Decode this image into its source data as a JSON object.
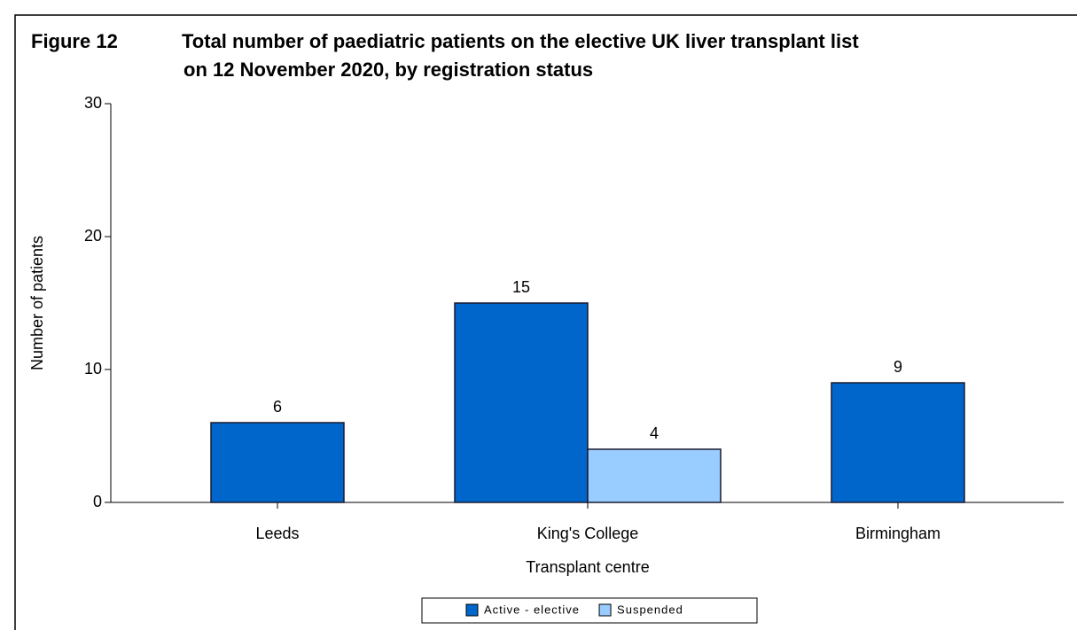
{
  "chart_data": {
    "type": "bar",
    "figure_label": "Figure 12",
    "title": [
      "Total number of paediatric patients on the elective UK liver transplant list",
      "on 12 November 2020, by registration status"
    ],
    "x_label": "Transplant centre",
    "y_label": "Number of patients",
    "categories": [
      "Leeds",
      "King's College",
      "Birmingham"
    ],
    "series": [
      {
        "name": "Active - elective",
        "color": "#0066cc",
        "values": [
          6,
          15,
          9
        ]
      },
      {
        "name": "Suspended",
        "color": "#99ccff",
        "values": [
          null,
          4,
          null
        ]
      }
    ],
    "ylim": [
      0,
      30
    ],
    "yticks": [
      0,
      10,
      20,
      30
    ],
    "grid": false
  }
}
